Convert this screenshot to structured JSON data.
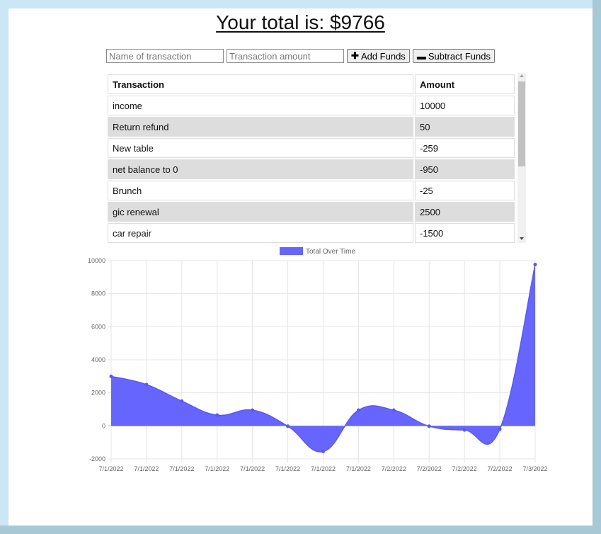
{
  "page": {
    "title": "Your total is: $9766"
  },
  "form": {
    "name_placeholder": "Name of transaction",
    "amount_placeholder": "Transaction amount",
    "add_label": "Add Funds",
    "subtract_label": "Subtract Funds"
  },
  "table": {
    "headers": [
      "Transaction",
      "Amount"
    ],
    "rows": [
      {
        "name": "income",
        "amount": "10000"
      },
      {
        "name": "Return refund",
        "amount": "50"
      },
      {
        "name": "New table",
        "amount": "-259"
      },
      {
        "name": "net balance to 0",
        "amount": "-950"
      },
      {
        "name": "Brunch",
        "amount": "-25"
      },
      {
        "name": "gic renewal",
        "amount": "2500"
      },
      {
        "name": "car repair",
        "amount": "-1500"
      }
    ]
  },
  "chart_data": {
    "type": "area",
    "title": "",
    "xlabel": "",
    "ylabel": "",
    "x": [
      "7/1/2022",
      "7/1/2022",
      "7/1/2022",
      "7/1/2022",
      "7/1/2022",
      "7/1/2022",
      "7/1/2022",
      "7/1/2022",
      "7/2/2022",
      "7/2/2022",
      "7/2/2022",
      "7/2/2022",
      "7/3/2022"
    ],
    "series": [
      {
        "name": "Total Over Time",
        "values": [
          3000,
          2500,
          1500,
          650,
          950,
          -20,
          -1550,
          950,
          950,
          -20,
          -250,
          -200,
          9766
        ]
      }
    ],
    "yticks": [
      10000,
      8000,
      6000,
      4000,
      2000,
      0,
      -2000
    ],
    "ylim": [
      -2000,
      10000
    ],
    "grid": true,
    "legend": "top-center",
    "fill_color": "#6666ff",
    "line_color": "#5a5aee"
  }
}
